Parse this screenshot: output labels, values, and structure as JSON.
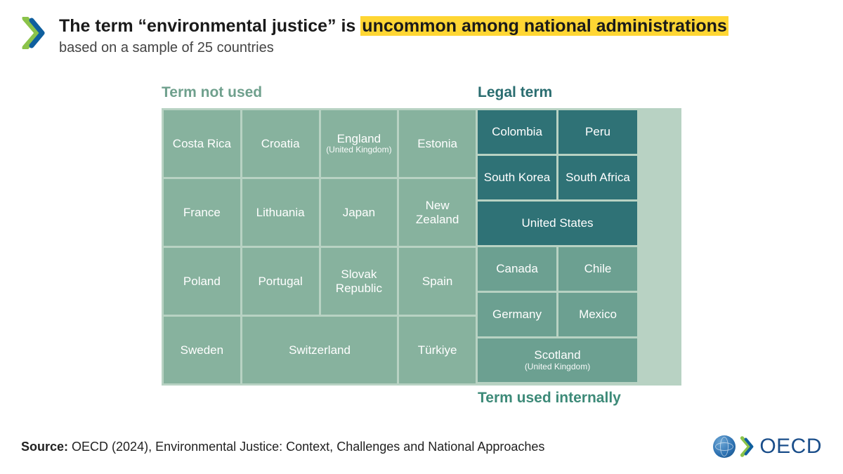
{
  "colors": {
    "highlight_bg": "#ffd633",
    "label_not_used": "#6fa08d",
    "label_legal": "#2a6d70",
    "label_internal": "#3d8a78",
    "cell_not_used": "#87b29e",
    "cell_legal": "#2f7276",
    "cell_internal": "#6ca091",
    "outer_bg": "#b8d2c3",
    "footer_logo": "#1a4e8a"
  },
  "header": {
    "title_pre": "The term “environmental justice” is ",
    "title_hl": "uncommon among national administrations",
    "subtitle": "based on a sample of 25 countries"
  },
  "labels": {
    "not_used": "Term not used",
    "legal": "Legal term",
    "internal": "Term used internally"
  },
  "not_used": {
    "rows": [
      [
        {
          "label": "Costa Rica",
          "span": 1
        },
        {
          "label": "Croatia",
          "span": 1
        },
        {
          "label": "England",
          "sub": "(United Kingdom)",
          "span": 1
        },
        {
          "label": "Estonia",
          "span": 1
        }
      ],
      [
        {
          "label": "France",
          "span": 1
        },
        {
          "label": "Lithuania",
          "span": 1
        },
        {
          "label": "Japan",
          "span": 1
        },
        {
          "label": "New Zealand",
          "span": 1
        }
      ],
      [
        {
          "label": "Poland",
          "span": 1
        },
        {
          "label": "Portugal",
          "span": 1
        },
        {
          "label": "Slovak Republic",
          "span": 1
        },
        {
          "label": "Spain",
          "span": 1
        }
      ],
      [
        {
          "label": "Sweden",
          "span": 1
        },
        {
          "label": "Switzerland",
          "span": 2
        },
        {
          "label": "Türkiye",
          "span": 1
        }
      ]
    ]
  },
  "legal": {
    "cells": [
      {
        "label": "Colombia",
        "span": 1
      },
      {
        "label": "Peru",
        "span": 1
      },
      {
        "label": "South Korea",
        "span": 1
      },
      {
        "label": "South Africa",
        "span": 1
      },
      {
        "label": "United States",
        "span": 2
      }
    ]
  },
  "internal": {
    "cells": [
      {
        "label": "Canada",
        "span": 1
      },
      {
        "label": "Chile",
        "span": 1
      },
      {
        "label": "Germany",
        "span": 1
      },
      {
        "label": "Mexico",
        "span": 1
      },
      {
        "label": "Scotland",
        "sub": "(United Kingdom)",
        "span": 2
      }
    ]
  },
  "footer": {
    "source_label": "Source:",
    "source_text": " OECD (2024), Environmental Justice: Context, Challenges and National Approaches",
    "logo_text": "OECD"
  }
}
